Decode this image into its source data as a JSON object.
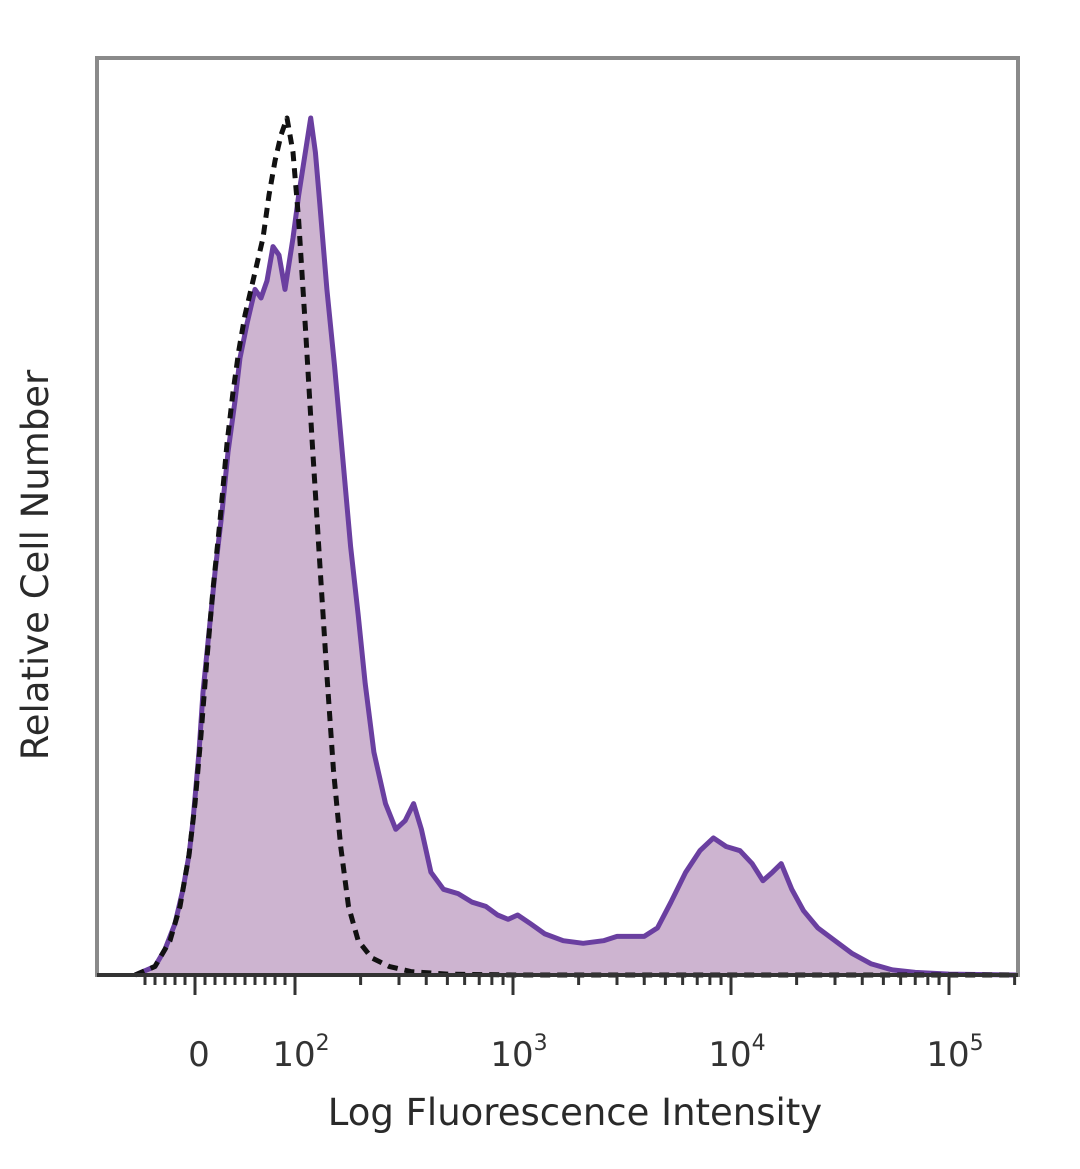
{
  "chart_data": {
    "type": "area",
    "xlabel": "Log Fluorescence Intensity",
    "ylabel": "Relative Cell Number",
    "x_scale": "biexponential (log above 10^2, linear near 0)",
    "x_ticks": [
      {
        "value": 0,
        "base": "0",
        "exp": ""
      },
      {
        "value": 100,
        "base": "10",
        "exp": "2"
      },
      {
        "value": 1000,
        "base": "10",
        "exp": "3"
      },
      {
        "value": 10000,
        "base": "10",
        "exp": "4"
      },
      {
        "value": 100000,
        "base": "10",
        "exp": "5"
      }
    ],
    "x_range": [
      -60,
      262144
    ],
    "y_range": [
      0,
      1
    ],
    "grid": false,
    "legend": "none",
    "series": [
      {
        "style": "filled-solid",
        "color": "#6a3fa0",
        "fill": "#cdb4d0",
        "points": [
          [
            -60,
            0.0
          ],
          [
            -40,
            0.01
          ],
          [
            -30,
            0.03
          ],
          [
            -20,
            0.06
          ],
          [
            -12,
            0.1
          ],
          [
            -6,
            0.14
          ],
          [
            -2,
            0.18
          ],
          [
            4,
            0.26
          ],
          [
            8,
            0.33
          ],
          [
            14,
            0.4
          ],
          [
            20,
            0.47
          ],
          [
            27,
            0.54
          ],
          [
            33,
            0.61
          ],
          [
            40,
            0.67
          ],
          [
            45,
            0.72
          ],
          [
            52,
            0.76
          ],
          [
            60,
            0.8
          ],
          [
            66,
            0.79
          ],
          [
            72,
            0.81
          ],
          [
            78,
            0.85
          ],
          [
            84,
            0.84
          ],
          [
            90,
            0.8
          ],
          [
            98,
            0.86
          ],
          [
            104,
            0.91
          ],
          [
            110,
            0.95
          ],
          [
            118,
            1.0
          ],
          [
            124,
            0.96
          ],
          [
            130,
            0.9
          ],
          [
            140,
            0.8
          ],
          [
            152,
            0.71
          ],
          [
            166,
            0.6
          ],
          [
            180,
            0.5
          ],
          [
            195,
            0.42
          ],
          [
            210,
            0.34
          ],
          [
            230,
            0.26
          ],
          [
            260,
            0.2
          ],
          [
            290,
            0.17
          ],
          [
            320,
            0.18
          ],
          [
            350,
            0.2
          ],
          [
            380,
            0.17
          ],
          [
            420,
            0.12
          ],
          [
            480,
            0.1
          ],
          [
            560,
            0.095
          ],
          [
            650,
            0.085
          ],
          [
            750,
            0.08
          ],
          [
            850,
            0.07
          ],
          [
            950,
            0.065
          ],
          [
            1050,
            0.07
          ],
          [
            1200,
            0.06
          ],
          [
            1400,
            0.048
          ],
          [
            1700,
            0.04
          ],
          [
            2100,
            0.037
          ],
          [
            2600,
            0.04
          ],
          [
            3000,
            0.045
          ],
          [
            3500,
            0.045
          ],
          [
            4000,
            0.045
          ],
          [
            4600,
            0.055
          ],
          [
            5300,
            0.085
          ],
          [
            6200,
            0.12
          ],
          [
            7200,
            0.145
          ],
          [
            8300,
            0.16
          ],
          [
            9500,
            0.15
          ],
          [
            11000,
            0.145
          ],
          [
            12500,
            0.13
          ],
          [
            14000,
            0.11
          ],
          [
            15500,
            0.12
          ],
          [
            17000,
            0.13
          ],
          [
            19000,
            0.1
          ],
          [
            21500,
            0.075
          ],
          [
            25000,
            0.055
          ],
          [
            30000,
            0.04
          ],
          [
            36000,
            0.025
          ],
          [
            44000,
            0.013
          ],
          [
            55000,
            0.006
          ],
          [
            70000,
            0.003
          ],
          [
            100000,
            0.001
          ],
          [
            262144,
            0.0
          ]
        ]
      },
      {
        "style": "dashed",
        "color": "#111111",
        "points": [
          [
            -60,
            0.0
          ],
          [
            -40,
            0.01
          ],
          [
            -25,
            0.04
          ],
          [
            -15,
            0.08
          ],
          [
            -6,
            0.14
          ],
          [
            0,
            0.2
          ],
          [
            6,
            0.28
          ],
          [
            12,
            0.37
          ],
          [
            18,
            0.45
          ],
          [
            25,
            0.53
          ],
          [
            32,
            0.62
          ],
          [
            38,
            0.68
          ],
          [
            44,
            0.73
          ],
          [
            50,
            0.77
          ],
          [
            56,
            0.8
          ],
          [
            62,
            0.83
          ],
          [
            68,
            0.86
          ],
          [
            74,
            0.91
          ],
          [
            80,
            0.95
          ],
          [
            86,
            0.98
          ],
          [
            92,
            1.0
          ],
          [
            98,
            0.96
          ],
          [
            104,
            0.88
          ],
          [
            112,
            0.75
          ],
          [
            120,
            0.62
          ],
          [
            130,
            0.48
          ],
          [
            140,
            0.35
          ],
          [
            150,
            0.24
          ],
          [
            162,
            0.15
          ],
          [
            176,
            0.08
          ],
          [
            195,
            0.04
          ],
          [
            225,
            0.02
          ],
          [
            270,
            0.01
          ],
          [
            340,
            0.004
          ],
          [
            500,
            0.001
          ],
          [
            1000,
            0.0
          ],
          [
            262144,
            0.0
          ]
        ]
      }
    ]
  }
}
